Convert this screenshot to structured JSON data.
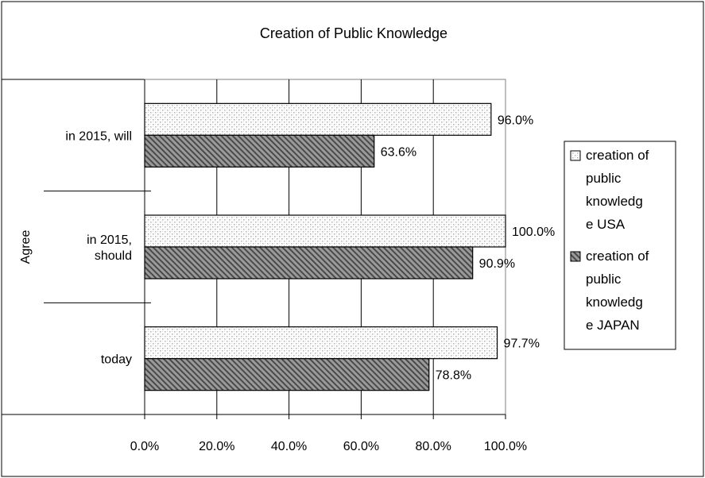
{
  "chart_data": {
    "type": "bar",
    "orientation": "horizontal",
    "title": "Creation of Public Knowledge",
    "group_label": "Agree",
    "categories": [
      "in 2015, will",
      "in 2015, should",
      "today"
    ],
    "category_lines": [
      [
        "in 2015, will"
      ],
      [
        "in 2015,",
        "should"
      ],
      [
        "today"
      ]
    ],
    "series": [
      {
        "name": "creation of public knowledge USA",
        "legend_lines": [
          "creation of",
          "public",
          "knowledg",
          "e USA"
        ],
        "pattern": "dots",
        "values": [
          96.0,
          100.0,
          97.7
        ]
      },
      {
        "name": "creation of public knowledge JAPAN",
        "legend_lines": [
          "creation of",
          "public",
          "knowledg",
          "e JAPAN"
        ],
        "pattern": "diagonal-hatch",
        "values": [
          63.6,
          90.9,
          78.8
        ]
      }
    ],
    "data_labels": [
      [
        "96.0%",
        "100.0%",
        "97.7%"
      ],
      [
        "63.6%",
        "90.9%",
        "78.8%"
      ]
    ],
    "xlim": [
      0,
      100
    ],
    "xticks": [
      0,
      20,
      40,
      60,
      80,
      100
    ],
    "xtick_labels": [
      "0.0%",
      "20.0%",
      "40.0%",
      "60.0%",
      "80.0%",
      "100.0%"
    ],
    "grid": "vertical",
    "legend_position": "right",
    "colors": {
      "plot_background": "#ffffff",
      "gridline": "#000000",
      "bar_border": "#000000",
      "usa_dot": "#b8b8b8",
      "japan_fill": "#9a9a9a",
      "japan_stripe": "#4a4a4a"
    }
  }
}
